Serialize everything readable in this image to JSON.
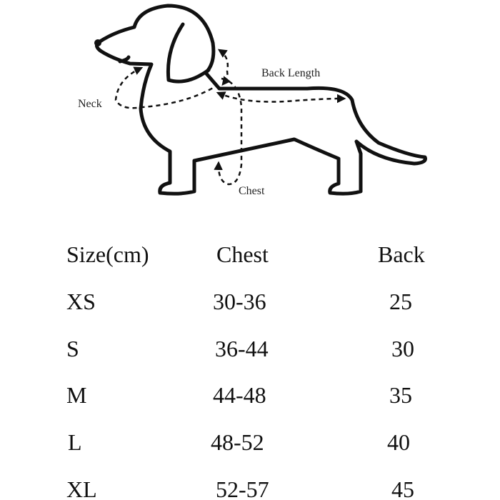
{
  "diagram": {
    "labels": {
      "neck": "Neck",
      "back_length": "Back Length",
      "chest": "Chest"
    }
  },
  "table": {
    "headers": [
      "Size(cm)",
      "Chest",
      "Back"
    ],
    "rows": [
      {
        "size": "XS",
        "chest": "30-36",
        "back": "25"
      },
      {
        "size": "S",
        "chest": "36-44",
        "back": "30"
      },
      {
        "size": "M",
        "chest": "44-48",
        "back": "35"
      },
      {
        "size": "L",
        "chest": "48-52",
        "back": "40"
      },
      {
        "size": "XL",
        "chest": "52-57",
        "back": "45"
      }
    ]
  }
}
